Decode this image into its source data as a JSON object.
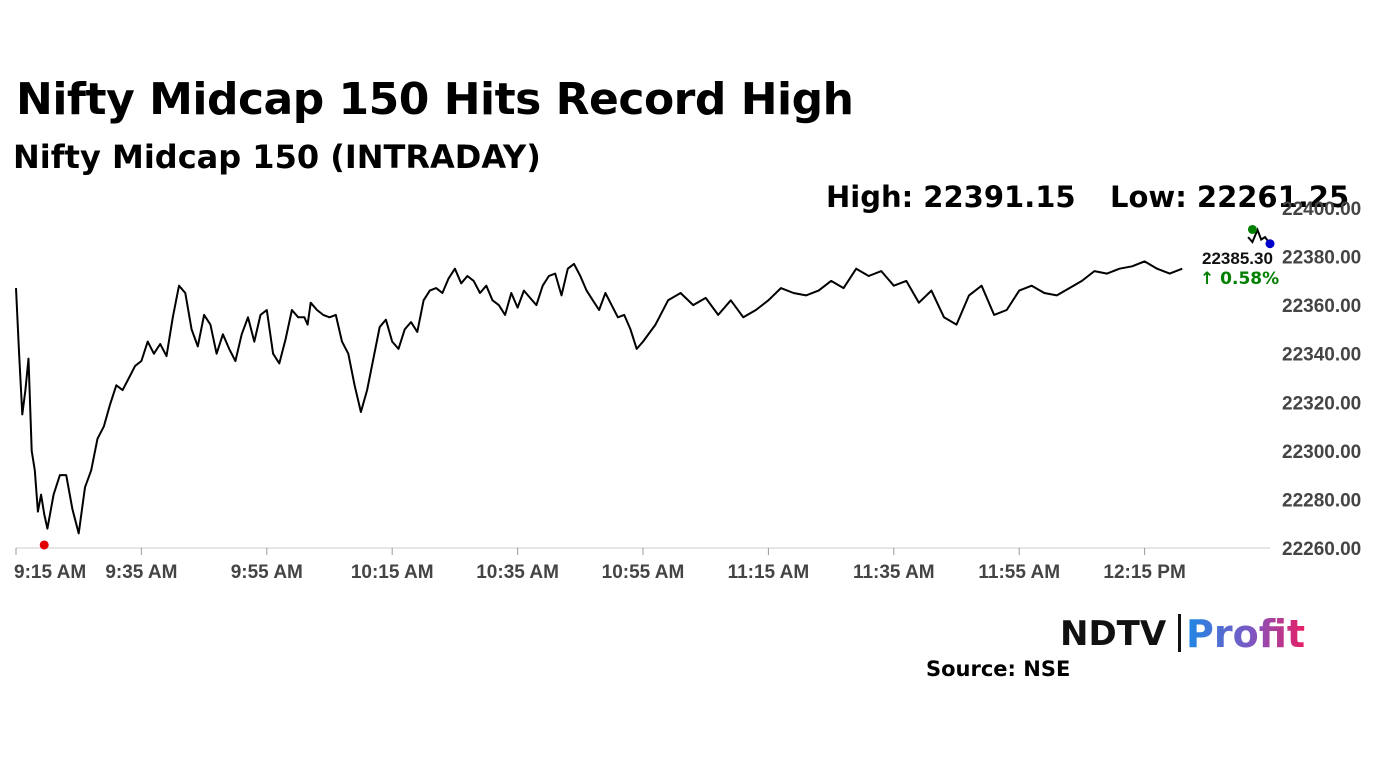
{
  "header": {
    "title": "Nifty Midcap 150 Hits Record High",
    "subtitle": "Nifty Midcap 150 (INTRADAY)",
    "high_text": "High: 22391.15",
    "low_text": "Low: 22261.25"
  },
  "branding": {
    "ndtv": "NDTV",
    "profit": "Profit",
    "source": "Source: NSE"
  },
  "chart_data": {
    "type": "line",
    "title": "Nifty Midcap 150 (INTRADAY)",
    "xlabel": "",
    "ylabel": "",
    "x_ticks": [
      "9:15 AM",
      "9:35 AM",
      "9:55 AM",
      "10:15 AM",
      "10:35 AM",
      "10:55 AM",
      "11:15 AM",
      "11:35 AM",
      "11:55 AM",
      "12:15 PM"
    ],
    "x_range_minutes": [
      0,
      200
    ],
    "ylim": [
      22260,
      22400
    ],
    "y_ticks": [
      "22400.00",
      "22380.00",
      "22360.00",
      "22340.00",
      "22320.00",
      "22300.00",
      "22280.00",
      "22260.00"
    ],
    "grid": false,
    "colors": {
      "line": "#000000",
      "low_marker": "#e00000",
      "high_marker": "#008000",
      "last_marker": "#0000cc",
      "change": "#008000"
    },
    "series": [
      {
        "minutes": [
          0,
          0.5,
          1,
          1.5,
          2,
          2.5,
          3,
          3.5,
          4,
          4.5,
          5,
          6,
          7,
          8,
          9,
          10,
          11,
          12,
          13,
          14,
          15,
          16,
          17,
          18,
          19,
          20,
          21,
          22,
          23,
          24,
          25,
          26,
          27,
          28,
          29,
          30,
          31,
          32,
          33,
          34,
          35,
          36,
          37,
          38,
          39,
          40,
          41,
          42,
          43,
          44,
          45,
          46,
          46.5,
          47,
          48,
          49,
          50,
          51,
          52,
          53,
          54,
          55,
          56,
          57,
          58,
          59,
          60,
          61,
          62,
          63,
          64,
          65,
          66,
          67,
          68,
          69,
          70,
          71,
          72,
          73,
          74,
          75,
          76,
          77,
          78,
          79,
          80,
          81,
          82,
          83,
          84,
          85,
          86,
          87,
          88,
          89,
          90,
          91,
          92,
          93,
          94,
          95,
          96,
          97,
          98,
          99,
          100,
          102,
          104,
          106,
          108,
          110,
          112,
          114,
          116,
          118,
          120,
          122,
          124,
          126,
          128,
          130,
          132,
          134,
          136,
          138,
          140,
          142,
          144,
          146,
          148,
          150,
          152,
          154,
          156,
          158,
          160,
          162,
          164,
          166,
          168,
          170,
          172,
          174,
          176,
          178,
          180,
          182,
          184,
          186,
          188,
          189.7
        ],
        "values": [
          22367,
          22340,
          22315,
          22325,
          22338,
          22300,
          22292,
          22275,
          22282,
          22274,
          22268,
          22282,
          22290,
          22290,
          22276,
          22266,
          22285,
          22292,
          22305,
          22310,
          22319,
          22327,
          22325,
          22330,
          22335,
          22337,
          22345,
          22340,
          22344,
          22339,
          22355,
          22368,
          22365,
          22350,
          22343,
          22356,
          22352,
          22340,
          22348,
          22342,
          22337,
          22348,
          22355,
          22345,
          22356,
          22358,
          22340,
          22336,
          22346,
          22358,
          22355,
          22355,
          22352,
          22361,
          22358,
          22356,
          22355,
          22356,
          22345,
          22340,
          22327,
          22316,
          22325,
          22338,
          22351,
          22354,
          22345,
          22342,
          22350,
          22353,
          22349,
          22362,
          22366,
          22367,
          22365,
          22371,
          22375,
          22369,
          22372,
          22370,
          22365,
          22368,
          22362,
          22360,
          22356,
          22365,
          22359,
          22366,
          22363,
          22360,
          22368,
          22372,
          22373,
          22364,
          22375,
          22377,
          22372,
          22366,
          22362,
          22358,
          22365,
          22360,
          22355,
          22356,
          22350,
          22342,
          22345,
          22352,
          22362,
          22365,
          22360,
          22363,
          22356,
          22362,
          22355,
          22358,
          22362,
          22367,
          22365,
          22364,
          22366,
          22370,
          22367,
          22375,
          22372,
          22374,
          22368,
          22370,
          22361,
          22366,
          22355,
          22352,
          22364,
          22368,
          22356,
          22358,
          22366,
          22368,
          22365,
          22364,
          22367,
          22370,
          22374,
          22373,
          22375,
          22376,
          22378,
          22375,
          22373,
          22375
        ]
      }
    ],
    "annotations": {
      "last_value": "22385.30",
      "change": "↑ 0.58%",
      "day_high": 22391.15,
      "day_low": 22261.25
    }
  }
}
